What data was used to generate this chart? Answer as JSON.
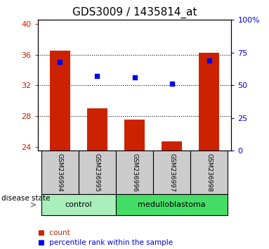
{
  "title": "GDS3009 / 1435814_at",
  "samples": [
    "GSM236994",
    "GSM236995",
    "GSM236996",
    "GSM236997",
    "GSM236998"
  ],
  "bar_values": [
    36.5,
    29.0,
    27.5,
    24.75,
    36.2
  ],
  "dot_values_pct": [
    68,
    57,
    56,
    51,
    69
  ],
  "ylim_left": [
    23.5,
    40.5
  ],
  "ylim_right": [
    0,
    100
  ],
  "yticks_left": [
    24,
    28,
    32,
    36,
    40
  ],
  "yticks_right": [
    0,
    25,
    50,
    75,
    100
  ],
  "ytick_labels_right": [
    "0",
    "25",
    "50",
    "75",
    "100%"
  ],
  "bar_color": "#cc2200",
  "dot_color": "#0000ee",
  "bar_bottom": 23.5,
  "grid_values": [
    28,
    32,
    36
  ],
  "disease_groups": [
    {
      "label": "control",
      "indices": [
        0,
        1
      ],
      "color": "#aaeebb"
    },
    {
      "label": "medulloblastoma",
      "indices": [
        2,
        3,
        4
      ],
      "color": "#44dd66"
    }
  ],
  "disease_label": "disease state",
  "legend_items": [
    {
      "label": "count",
      "color": "#cc2200"
    },
    {
      "label": "percentile rank within the sample",
      "color": "#0000ee"
    }
  ],
  "sample_area_bg": "#cccccc",
  "title_fontsize": 11,
  "tick_fontsize": 8,
  "legend_fontsize": 7.5
}
